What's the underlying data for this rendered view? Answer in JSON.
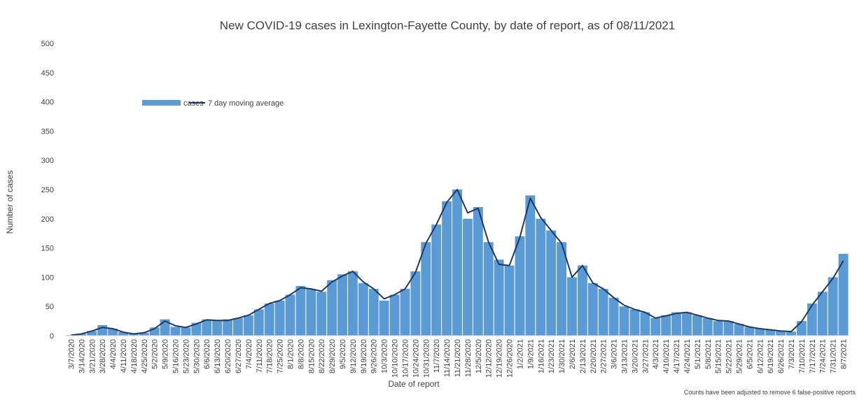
{
  "chart_data": {
    "type": "bar",
    "title": "New COVID-19 cases in Lexington-Fayette County, by date of report, as of 08/11/2021",
    "xlabel": "Date of report",
    "ylabel": "Number of cases",
    "note": "Counts have been adjusted to remove 6 false-positive reports",
    "ylim": [
      0,
      500
    ],
    "y_ticks": [
      0,
      50,
      100,
      150,
      200,
      250,
      300,
      350,
      400,
      450,
      500
    ],
    "grid": false,
    "legend_position": "top-left",
    "colors": {
      "bars": "#5b9bd5",
      "line": "#1f3864",
      "text": "#404040"
    },
    "x_start_date": "2020-03-07",
    "x_tick_labels": [
      "3/7/2020",
      "3/14/2020",
      "3/21/2020",
      "3/28/2020",
      "4/4/2020",
      "4/11/2020",
      "4/18/2020",
      "4/25/2020",
      "5/2/2020",
      "5/9/2020",
      "5/16/2020",
      "5/23/2020",
      "5/30/2020",
      "6/6/2020",
      "6/13/2020",
      "6/20/2020",
      "6/27/2020",
      "7/4/2020",
      "7/11/2020",
      "7/18/2020",
      "7/25/2020",
      "8/1/2020",
      "8/8/2020",
      "8/15/2020",
      "8/22/2020",
      "8/29/2020",
      "9/5/2020",
      "9/12/2020",
      "9/19/2020",
      "9/26/2020",
      "10/3/2020",
      "10/10/2020",
      "10/17/2020",
      "10/24/2020",
      "10/31/2020",
      "11/7/2020",
      "11/14/2020",
      "11/21/2020",
      "11/28/2020",
      "12/5/2020",
      "12/12/2020",
      "12/19/2020",
      "12/26/2020",
      "1/2/2021",
      "1/9/2021",
      "1/16/2021",
      "1/23/2021",
      "1/30/2021",
      "2/6/2021",
      "2/13/2021",
      "2/20/2021",
      "2/27/2021",
      "3/6/2021",
      "3/13/2021",
      "3/20/2021",
      "3/27/2021",
      "4/3/2021",
      "4/10/2021",
      "4/17/2021",
      "4/24/2021",
      "5/1/2021",
      "5/8/2021",
      "5/15/2021",
      "5/22/2021",
      "5/29/2021",
      "6/5/2021",
      "6/12/2021",
      "6/19/2021",
      "6/26/2021",
      "7/3/2021",
      "7/10/2021",
      "7/17/2021",
      "7/24/2021",
      "7/31/2021",
      "8/7/2021"
    ],
    "weekly_mean_cases": [
      1,
      3,
      8,
      18,
      12,
      6,
      3,
      5,
      14,
      28,
      15,
      14,
      22,
      28,
      26,
      28,
      30,
      35,
      45,
      55,
      60,
      70,
      85,
      80,
      75,
      95,
      105,
      110,
      90,
      80,
      60,
      70,
      80,
      110,
      160,
      190,
      230,
      250,
      200,
      220,
      160,
      130,
      120,
      170,
      240,
      200,
      180,
      160,
      100,
      120,
      90,
      80,
      65,
      50,
      45,
      40,
      30,
      35,
      40,
      40,
      35,
      30,
      25,
      25,
      20,
      15,
      12,
      10,
      8,
      7,
      25,
      55,
      75,
      100,
      140
    ],
    "moving_average_weekly": [
      1,
      3,
      8,
      14,
      12,
      6,
      3,
      5,
      12,
      25,
      17,
      14,
      20,
      27,
      26,
      26,
      30,
      35,
      45,
      55,
      60,
      70,
      82,
      80,
      76,
      92,
      102,
      110,
      92,
      80,
      63,
      70,
      80,
      108,
      158,
      190,
      228,
      250,
      210,
      218,
      160,
      122,
      120,
      168,
      235,
      202,
      180,
      158,
      100,
      120,
      90,
      80,
      65,
      52,
      45,
      40,
      30,
      34,
      38,
      40,
      35,
      30,
      26,
      25,
      20,
      15,
      12,
      10,
      8,
      7,
      24,
      52,
      75,
      98,
      128
    ],
    "series": [
      {
        "name": "cases",
        "type": "bar"
      },
      {
        "name": "7 day moving average",
        "type": "line"
      }
    ]
  }
}
